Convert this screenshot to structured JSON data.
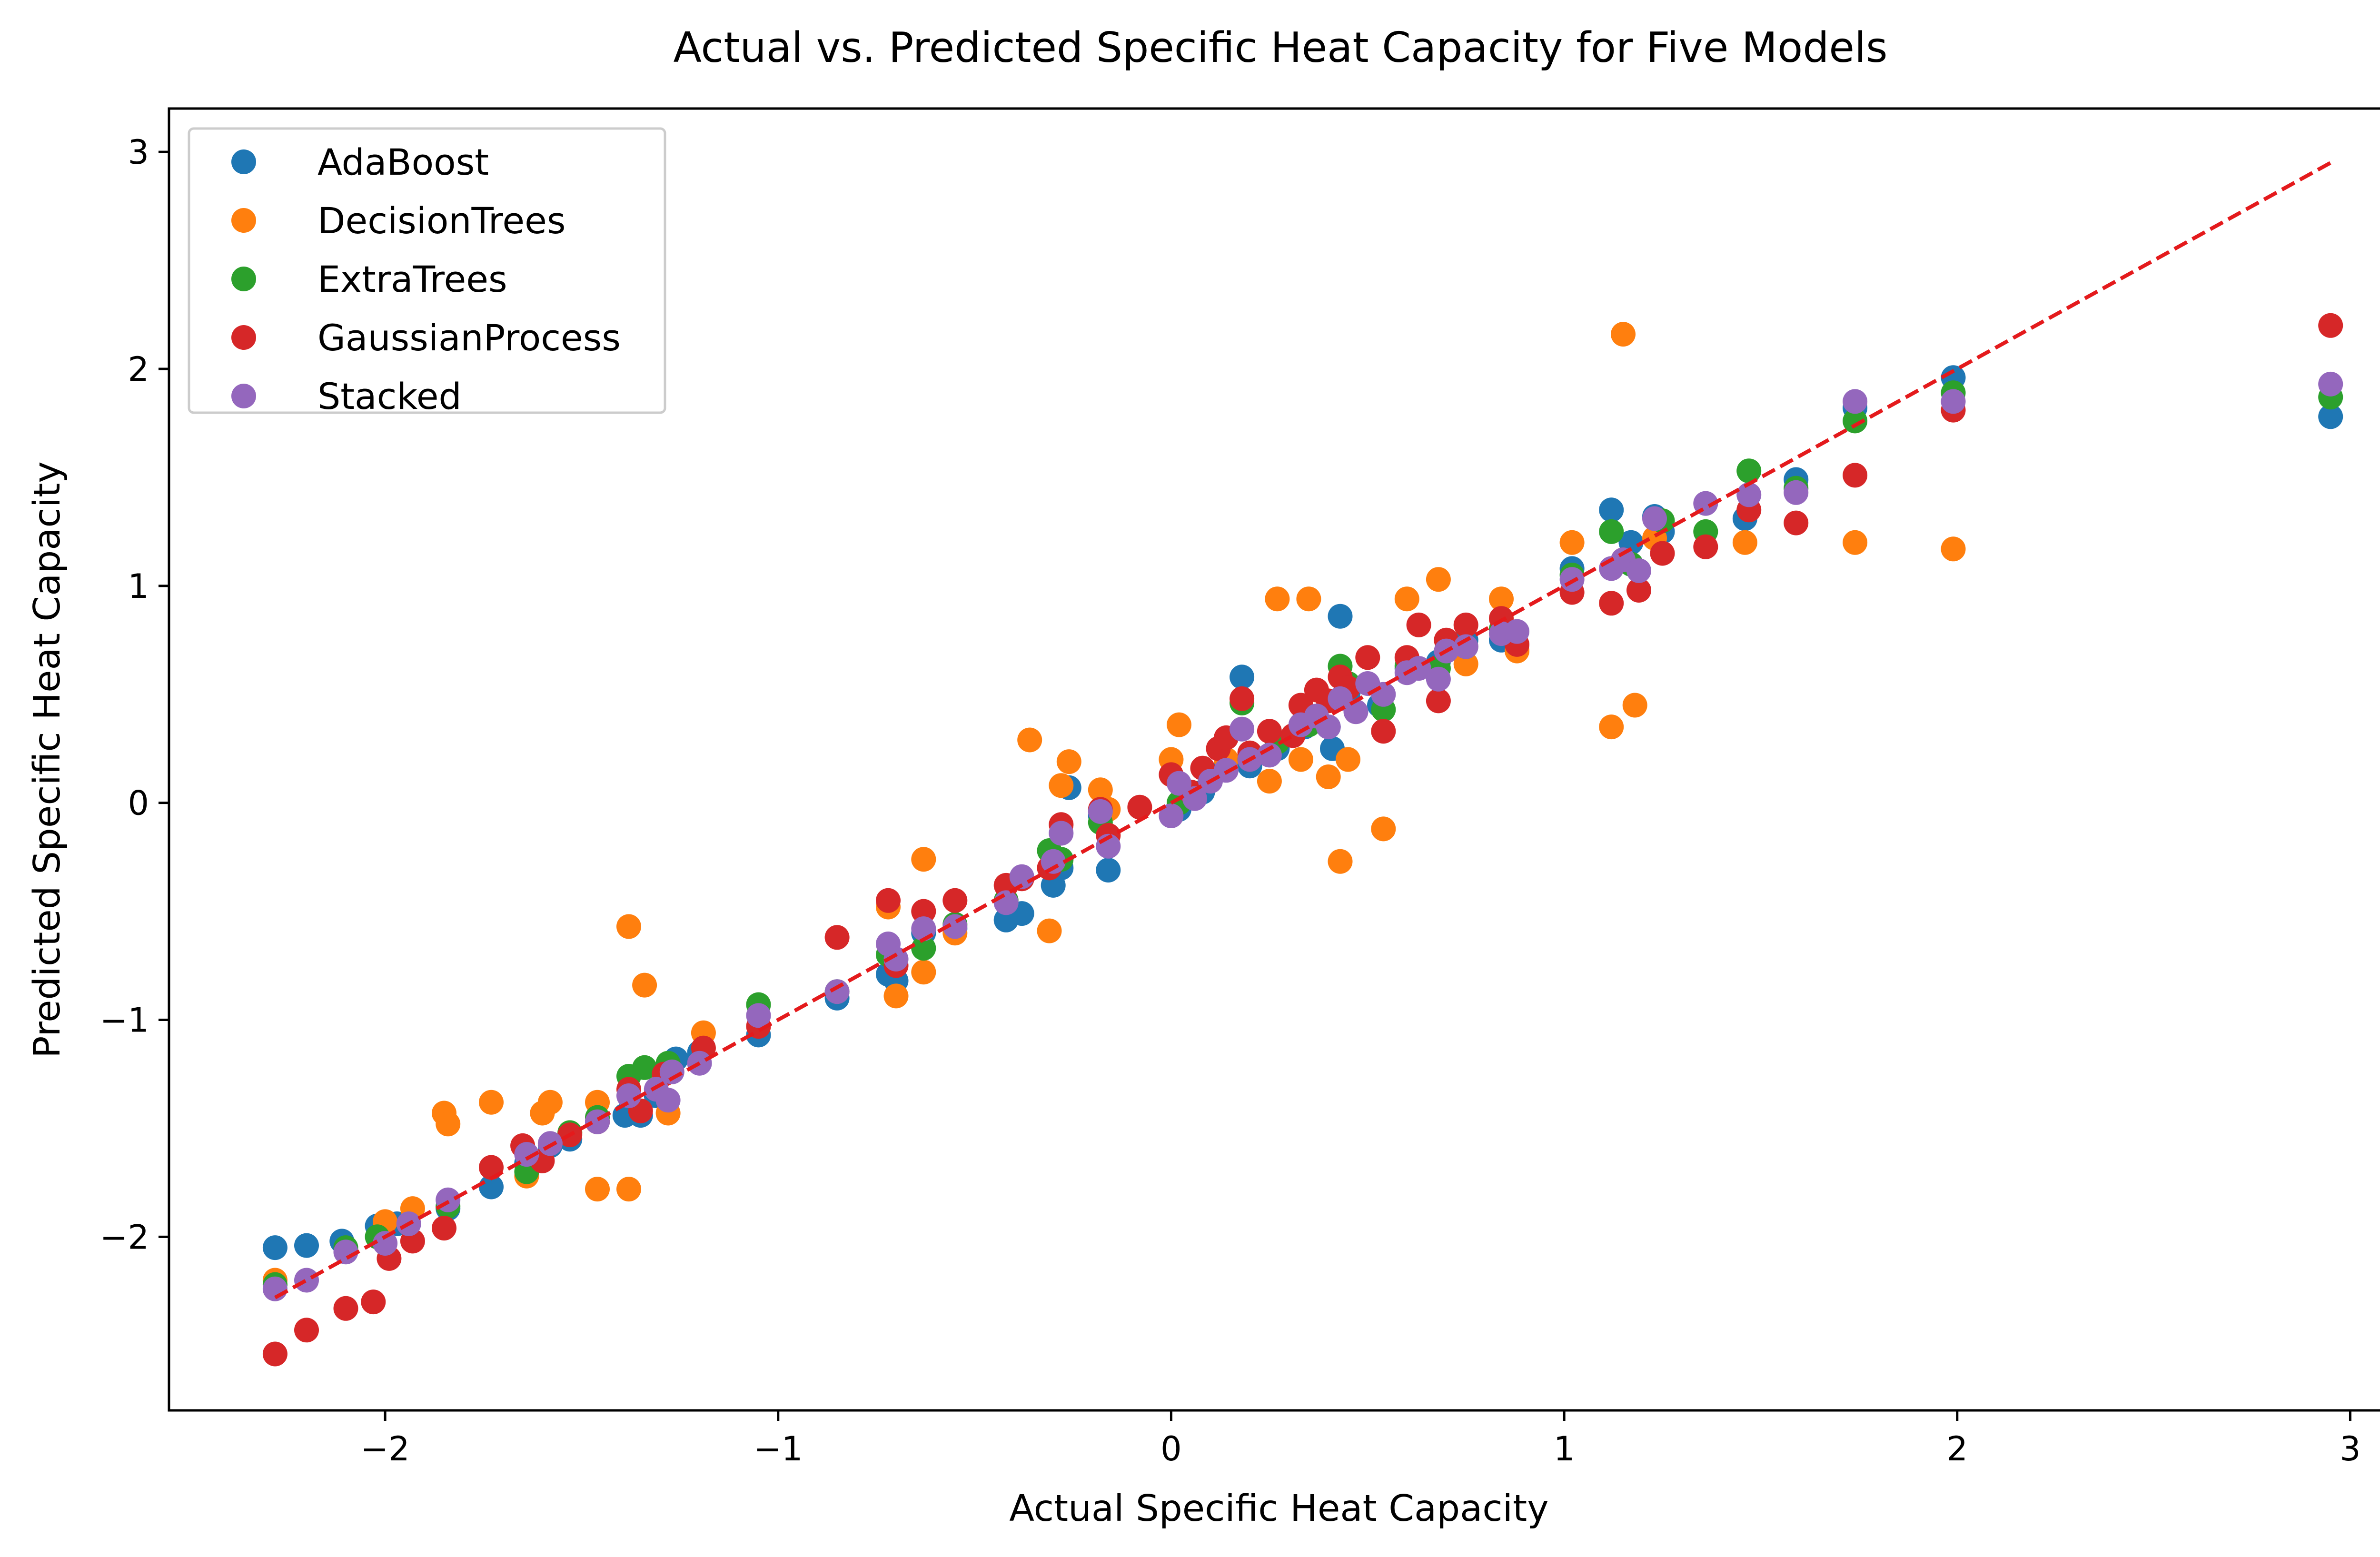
{
  "chart_data": {
    "type": "scatter",
    "title": "Actual vs. Predicted Specific Heat Capacity for Five Models",
    "xlabel": "Actual Specific Heat Capacity",
    "ylabel": "Predicted Specific Heat Capacity",
    "xlim": [
      -2.55,
      3.1
    ],
    "ylim": [
      -2.8,
      3.2
    ],
    "xticks": [
      -2,
      -1,
      0,
      1,
      2,
      3
    ],
    "yticks": [
      -2,
      -1,
      0,
      1,
      2,
      3
    ],
    "xtick_labels": [
      "−2",
      "−1",
      "0",
      "1",
      "2",
      "3"
    ],
    "ytick_labels": [
      "−2",
      "−1",
      "0",
      "1",
      "2",
      "3"
    ],
    "grid": false,
    "legend_position": "top-left",
    "reference_line": {
      "style": "dashed",
      "color": "#e41a1c",
      "x": [
        -2.28,
        2.95
      ],
      "y": [
        -2.28,
        2.95
      ]
    },
    "series": [
      {
        "name": "AdaBoost",
        "color": "#1f77b4",
        "points": [
          [
            -2.28,
            -2.05
          ],
          [
            -2.2,
            -2.04
          ],
          [
            -2.11,
            -2.02
          ],
          [
            -2.02,
            -1.95
          ],
          [
            -1.97,
            -1.94
          ],
          [
            -1.84,
            -1.87
          ],
          [
            -1.73,
            -1.77
          ],
          [
            -1.64,
            -1.66
          ],
          [
            -1.58,
            -1.58
          ],
          [
            -1.53,
            -1.55
          ],
          [
            -1.46,
            -1.47
          ],
          [
            -1.39,
            -1.44
          ],
          [
            -1.35,
            -1.44
          ],
          [
            -1.31,
            -1.35
          ],
          [
            -1.26,
            -1.18
          ],
          [
            -1.2,
            -1.15
          ],
          [
            -1.05,
            -1.07
          ],
          [
            -0.85,
            -0.9
          ],
          [
            -0.72,
            -0.79
          ],
          [
            -0.7,
            -0.82
          ],
          [
            -0.63,
            -0.6
          ],
          [
            -0.55,
            -0.58
          ],
          [
            -0.42,
            -0.54
          ],
          [
            -0.38,
            -0.51
          ],
          [
            -0.3,
            -0.38
          ],
          [
            -0.28,
            -0.3
          ],
          [
            -0.26,
            0.07
          ],
          [
            -0.16,
            -0.31
          ],
          [
            -0.18,
            -0.06
          ],
          [
            0.02,
            -0.03
          ],
          [
            0.08,
            0.05
          ],
          [
            0.14,
            0.18
          ],
          [
            0.18,
            0.58
          ],
          [
            0.2,
            0.17
          ],
          [
            0.27,
            0.25
          ],
          [
            0.34,
            0.35
          ],
          [
            0.4,
            0.35
          ],
          [
            0.41,
            0.25
          ],
          [
            0.43,
            0.86
          ],
          [
            0.45,
            0.5
          ],
          [
            0.53,
            0.45
          ],
          [
            0.6,
            0.62
          ],
          [
            0.68,
            0.65
          ],
          [
            0.75,
            0.75
          ],
          [
            0.84,
            0.75
          ],
          [
            1.02,
            1.08
          ],
          [
            1.12,
            1.35
          ],
          [
            1.17,
            1.2
          ],
          [
            1.23,
            1.32
          ],
          [
            1.25,
            1.25
          ],
          [
            1.46,
            1.31
          ],
          [
            1.59,
            1.49
          ],
          [
            1.74,
            1.82
          ],
          [
            1.99,
            1.96
          ],
          [
            2.95,
            1.78
          ]
        ]
      },
      {
        "name": "DecisionTrees",
        "color": "#ff7f0e",
        "points": [
          [
            -2.28,
            -2.2
          ],
          [
            -2.0,
            -1.93
          ],
          [
            -1.93,
            -1.87
          ],
          [
            -1.85,
            -1.43
          ],
          [
            -1.84,
            -1.48
          ],
          [
            -1.73,
            -1.38
          ],
          [
            -1.64,
            -1.72
          ],
          [
            -1.6,
            -1.43
          ],
          [
            -1.58,
            -1.38
          ],
          [
            -1.53,
            -1.52
          ],
          [
            -1.46,
            -1.78
          ],
          [
            -1.46,
            -1.38
          ],
          [
            -1.38,
            -0.57
          ],
          [
            -1.38,
            -1.78
          ],
          [
            -1.34,
            -0.84
          ],
          [
            -1.28,
            -1.43
          ],
          [
            -1.19,
            -1.06
          ],
          [
            -0.72,
            -0.48
          ],
          [
            -0.7,
            -0.89
          ],
          [
            -0.63,
            -0.26
          ],
          [
            -0.63,
            -0.78
          ],
          [
            -0.55,
            -0.6
          ],
          [
            -0.36,
            0.29
          ],
          [
            -0.31,
            -0.59
          ],
          [
            -0.28,
            0.08
          ],
          [
            -0.26,
            0.19
          ],
          [
            -0.18,
            0.06
          ],
          [
            -0.16,
            -0.03
          ],
          [
            0.0,
            0.2
          ],
          [
            0.02,
            0.36
          ],
          [
            0.1,
            0.12
          ],
          [
            0.14,
            0.2
          ],
          [
            0.25,
            0.1
          ],
          [
            0.27,
            0.94
          ],
          [
            0.33,
            0.2
          ],
          [
            0.35,
            0.94
          ],
          [
            0.4,
            0.12
          ],
          [
            0.43,
            -0.27
          ],
          [
            0.45,
            0.2
          ],
          [
            0.54,
            -0.12
          ],
          [
            0.6,
            0.94
          ],
          [
            0.68,
            1.03
          ],
          [
            0.75,
            0.64
          ],
          [
            0.84,
            0.94
          ],
          [
            0.88,
            0.7
          ],
          [
            1.02,
            1.2
          ],
          [
            1.12,
            0.35
          ],
          [
            1.15,
            2.16
          ],
          [
            1.18,
            0.45
          ],
          [
            1.23,
            1.22
          ],
          [
            1.46,
            1.2
          ],
          [
            1.74,
            1.2
          ],
          [
            1.99,
            1.17
          ]
        ]
      },
      {
        "name": "ExtraTrees",
        "color": "#2ca02c",
        "points": [
          [
            -2.28,
            -2.22
          ],
          [
            -2.1,
            -2.05
          ],
          [
            -2.02,
            -2.0
          ],
          [
            -1.84,
            -1.86
          ],
          [
            -1.64,
            -1.7
          ],
          [
            -1.53,
            -1.52
          ],
          [
            -1.46,
            -1.45
          ],
          [
            -1.38,
            -1.26
          ],
          [
            -1.34,
            -1.22
          ],
          [
            -1.28,
            -1.2
          ],
          [
            -1.05,
            -0.93
          ],
          [
            -0.85,
            -0.87
          ],
          [
            -0.72,
            -0.7
          ],
          [
            -0.63,
            -0.67
          ],
          [
            -0.55,
            -0.56
          ],
          [
            -0.42,
            -0.45
          ],
          [
            -0.31,
            -0.22
          ],
          [
            -0.28,
            -0.26
          ],
          [
            -0.18,
            -0.09
          ],
          [
            0.02,
            0.0
          ],
          [
            0.18,
            0.46
          ],
          [
            0.2,
            0.2
          ],
          [
            0.27,
            0.28
          ],
          [
            0.35,
            0.36
          ],
          [
            0.43,
            0.63
          ],
          [
            0.45,
            0.55
          ],
          [
            0.54,
            0.43
          ],
          [
            0.6,
            0.63
          ],
          [
            0.68,
            0.62
          ],
          [
            0.75,
            0.72
          ],
          [
            0.84,
            0.8
          ],
          [
            1.02,
            1.05
          ],
          [
            1.12,
            1.25
          ],
          [
            1.17,
            1.1
          ],
          [
            1.25,
            1.3
          ],
          [
            1.36,
            1.25
          ],
          [
            1.47,
            1.53
          ],
          [
            1.59,
            1.45
          ],
          [
            1.74,
            1.76
          ],
          [
            1.99,
            1.89
          ],
          [
            2.95,
            1.87
          ]
        ]
      },
      {
        "name": "GaussianProcess",
        "color": "#d62728",
        "points": [
          [
            -2.28,
            -2.54
          ],
          [
            -2.2,
            -2.43
          ],
          [
            -2.1,
            -2.33
          ],
          [
            -2.03,
            -2.3
          ],
          [
            -1.99,
            -2.1
          ],
          [
            -1.93,
            -2.02
          ],
          [
            -1.85,
            -1.96
          ],
          [
            -1.73,
            -1.68
          ],
          [
            -1.65,
            -1.58
          ],
          [
            -1.6,
            -1.65
          ],
          [
            -1.53,
            -1.53
          ],
          [
            -1.46,
            -1.47
          ],
          [
            -1.38,
            -1.32
          ],
          [
            -1.35,
            -1.42
          ],
          [
            -1.29,
            -1.25
          ],
          [
            -1.19,
            -1.13
          ],
          [
            -1.05,
            -1.03
          ],
          [
            -0.85,
            -0.62
          ],
          [
            -0.72,
            -0.45
          ],
          [
            -0.7,
            -0.75
          ],
          [
            -0.63,
            -0.5
          ],
          [
            -0.55,
            -0.45
          ],
          [
            -0.42,
            -0.38
          ],
          [
            -0.38,
            -0.35
          ],
          [
            -0.31,
            -0.3
          ],
          [
            -0.28,
            -0.1
          ],
          [
            -0.18,
            -0.03
          ],
          [
            -0.16,
            -0.15
          ],
          [
            -0.08,
            -0.02
          ],
          [
            0.0,
            0.13
          ],
          [
            0.05,
            0.05
          ],
          [
            0.08,
            0.16
          ],
          [
            0.12,
            0.25
          ],
          [
            0.14,
            0.3
          ],
          [
            0.18,
            0.48
          ],
          [
            0.2,
            0.23
          ],
          [
            0.25,
            0.33
          ],
          [
            0.31,
            0.31
          ],
          [
            0.33,
            0.45
          ],
          [
            0.37,
            0.52
          ],
          [
            0.4,
            0.47
          ],
          [
            0.43,
            0.58
          ],
          [
            0.45,
            0.53
          ],
          [
            0.5,
            0.67
          ],
          [
            0.54,
            0.33
          ],
          [
            0.6,
            0.67
          ],
          [
            0.63,
            0.82
          ],
          [
            0.68,
            0.47
          ],
          [
            0.7,
            0.75
          ],
          [
            0.75,
            0.82
          ],
          [
            0.84,
            0.85
          ],
          [
            0.88,
            0.73
          ],
          [
            1.02,
            0.97
          ],
          [
            1.12,
            0.92
          ],
          [
            1.15,
            1.12
          ],
          [
            1.19,
            0.98
          ],
          [
            1.25,
            1.15
          ],
          [
            1.36,
            1.18
          ],
          [
            1.47,
            1.35
          ],
          [
            1.59,
            1.29
          ],
          [
            1.74,
            1.51
          ],
          [
            1.99,
            1.81
          ],
          [
            2.95,
            2.2
          ]
        ]
      },
      {
        "name": "Stacked",
        "color": "#9467bd",
        "points": [
          [
            -2.28,
            -2.24
          ],
          [
            -2.2,
            -2.2
          ],
          [
            -2.1,
            -2.07
          ],
          [
            -2.0,
            -2.03
          ],
          [
            -1.94,
            -1.94
          ],
          [
            -1.84,
            -1.83
          ],
          [
            -1.64,
            -1.62
          ],
          [
            -1.58,
            -1.57
          ],
          [
            -1.46,
            -1.47
          ],
          [
            -1.38,
            -1.35
          ],
          [
            -1.31,
            -1.32
          ],
          [
            -1.28,
            -1.37
          ],
          [
            -1.27,
            -1.24
          ],
          [
            -1.2,
            -1.2
          ],
          [
            -1.05,
            -0.98
          ],
          [
            -0.85,
            -0.87
          ],
          [
            -0.72,
            -0.65
          ],
          [
            -0.7,
            -0.72
          ],
          [
            -0.63,
            -0.58
          ],
          [
            -0.55,
            -0.57
          ],
          [
            -0.42,
            -0.46
          ],
          [
            -0.38,
            -0.34
          ],
          [
            -0.3,
            -0.27
          ],
          [
            -0.28,
            -0.14
          ],
          [
            -0.18,
            -0.04
          ],
          [
            -0.16,
            -0.2
          ],
          [
            0.0,
            -0.06
          ],
          [
            0.02,
            0.09
          ],
          [
            0.06,
            0.02
          ],
          [
            0.1,
            0.1
          ],
          [
            0.14,
            0.15
          ],
          [
            0.18,
            0.34
          ],
          [
            0.2,
            0.2
          ],
          [
            0.25,
            0.22
          ],
          [
            0.33,
            0.36
          ],
          [
            0.37,
            0.4
          ],
          [
            0.4,
            0.35
          ],
          [
            0.43,
            0.48
          ],
          [
            0.47,
            0.42
          ],
          [
            0.5,
            0.55
          ],
          [
            0.54,
            0.5
          ],
          [
            0.6,
            0.6
          ],
          [
            0.63,
            0.62
          ],
          [
            0.68,
            0.57
          ],
          [
            0.7,
            0.7
          ],
          [
            0.75,
            0.72
          ],
          [
            0.84,
            0.78
          ],
          [
            0.88,
            0.79
          ],
          [
            1.02,
            1.03
          ],
          [
            1.12,
            1.08
          ],
          [
            1.15,
            1.12
          ],
          [
            1.19,
            1.07
          ],
          [
            1.23,
            1.31
          ],
          [
            1.36,
            1.38
          ],
          [
            1.47,
            1.42
          ],
          [
            1.59,
            1.43
          ],
          [
            1.74,
            1.85
          ],
          [
            1.99,
            1.85
          ],
          [
            2.95,
            1.93
          ]
        ]
      }
    ]
  }
}
